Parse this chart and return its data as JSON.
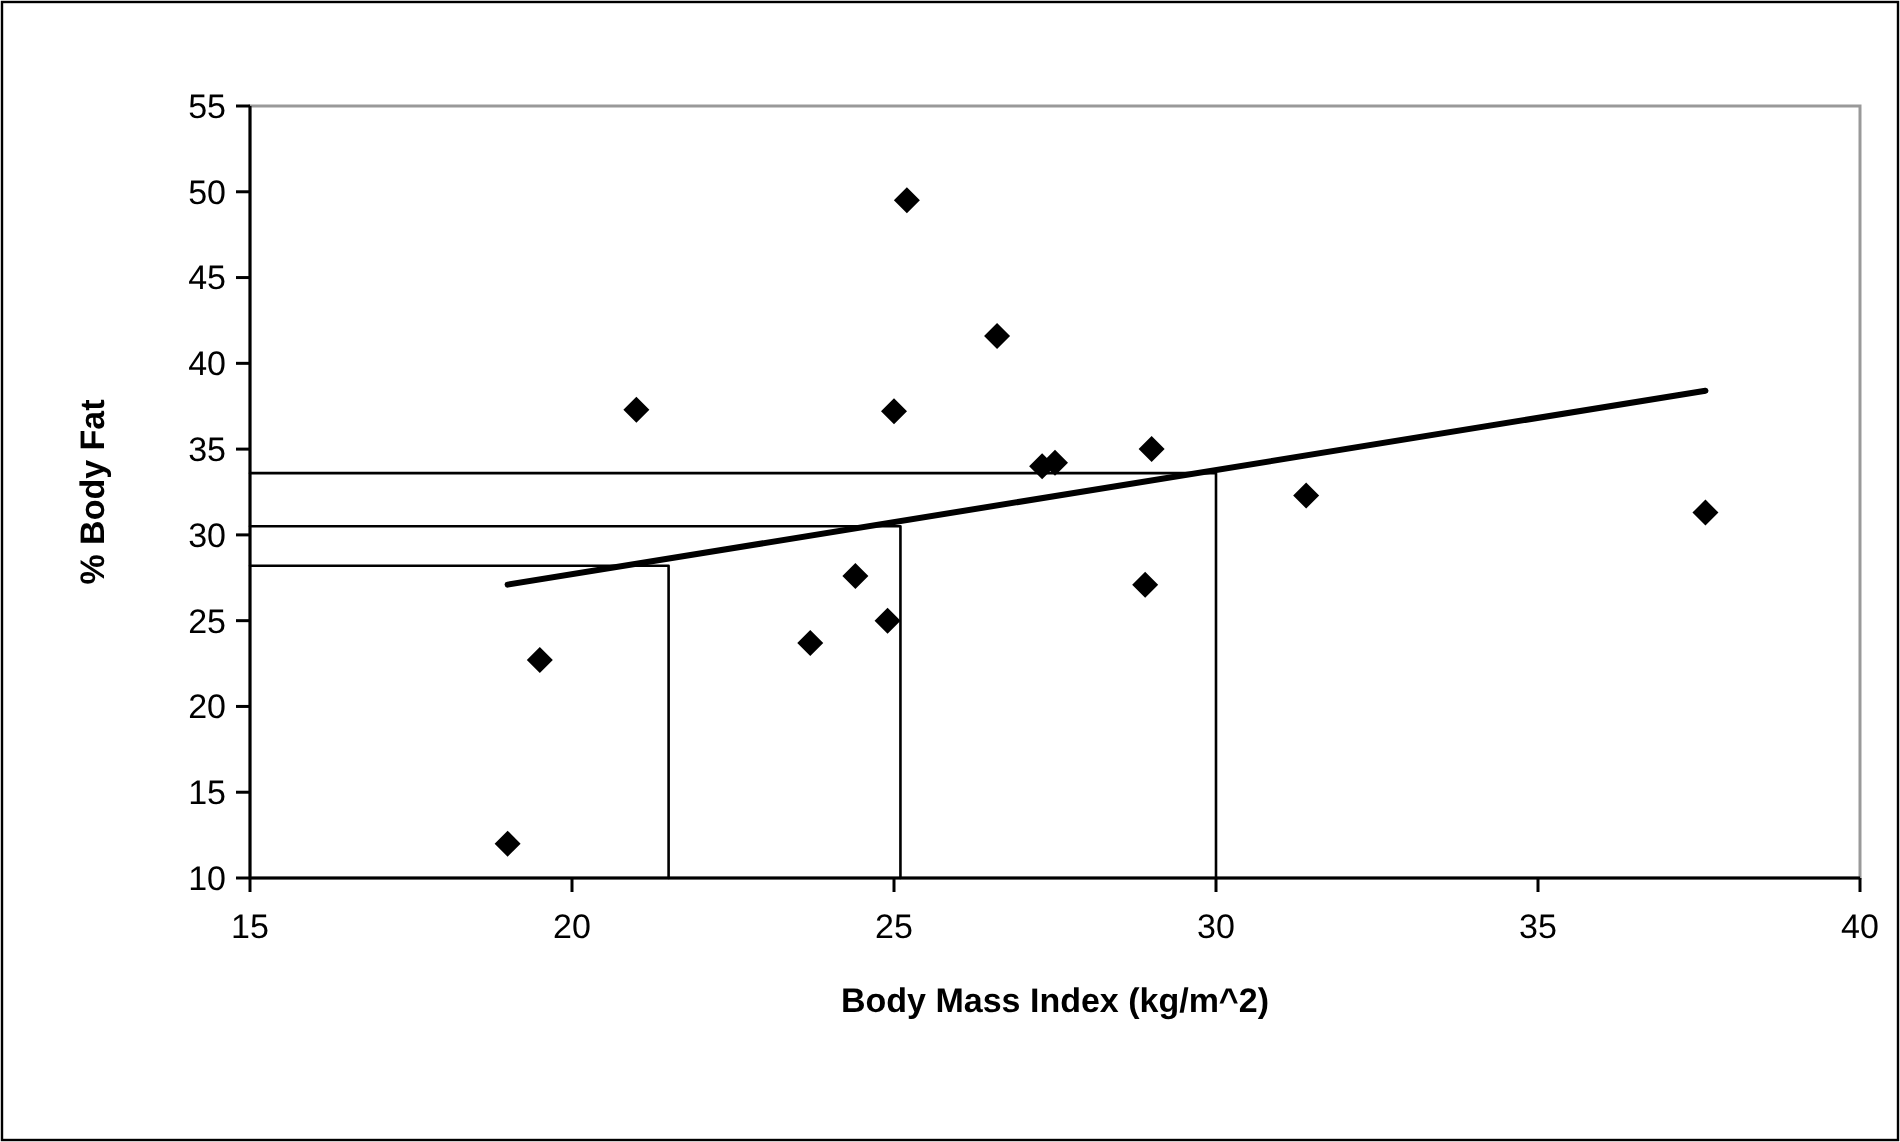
{
  "chart_data": {
    "type": "scatter",
    "xlabel": "Body Mass Index (kg/m^2)",
    "ylabel": "% Body Fat",
    "xlim": [
      15,
      40
    ],
    "xticks": [
      15,
      20,
      25,
      30,
      35,
      40
    ],
    "ylim": [
      10,
      55
    ],
    "yticks": [
      10,
      15,
      20,
      25,
      30,
      35,
      40,
      45,
      50,
      55
    ],
    "grid": false,
    "series": [
      {
        "marker": "diamond",
        "color": "#000000",
        "x": [
          19.0,
          19.5,
          21.0,
          23.7,
          24.4,
          24.9,
          25.0,
          25.2,
          26.6,
          27.3,
          27.5,
          29.0,
          28.9,
          31.4,
          37.6
        ],
        "values": [
          12.0,
          22.7,
          37.3,
          23.7,
          27.6,
          25.0,
          37.2,
          49.5,
          41.6,
          34.0,
          34.2,
          35.0,
          27.1,
          32.3,
          31.3
        ]
      },
      {
        "type": "line",
        "marker": "none",
        "color": "#000000",
        "x": [
          19.0,
          37.6
        ],
        "values": [
          27.1,
          38.4
        ]
      },
      {
        "type": "step",
        "marker": "none",
        "color": "#000000",
        "x": [
          15,
          21.5
        ],
        "values": [
          28.2,
          10
        ]
      },
      {
        "type": "step",
        "marker": "none",
        "color": "#000000",
        "x": [
          15,
          25.1
        ],
        "values": [
          30.5,
          10
        ]
      },
      {
        "type": "step",
        "marker": "none",
        "color": "#000000",
        "x": [
          15,
          30.0
        ],
        "values": [
          33.6,
          10
        ]
      }
    ]
  }
}
